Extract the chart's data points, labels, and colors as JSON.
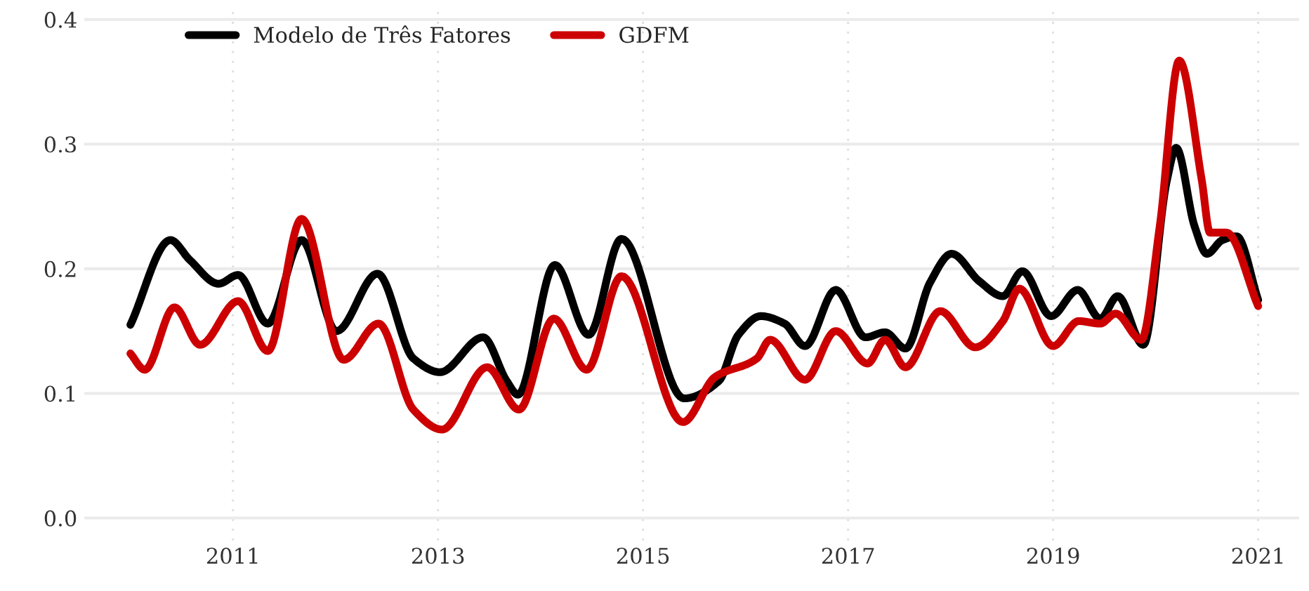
{
  "chart_data": {
    "type": "line",
    "xlim": [
      2009.55,
      2021.4
    ],
    "xticks": [
      2011,
      2013,
      2015,
      2017,
      2019,
      2021
    ],
    "ylim": [
      -0.018,
      0.41
    ],
    "yticks": [
      {
        "value": 0,
        "label": "0.0"
      },
      {
        "value": 0.1,
        "label": "0.1"
      },
      {
        "value": 0.2,
        "label": "0.2"
      },
      {
        "value": 0.3,
        "label": "0.3"
      },
      {
        "value": 0.4,
        "label": "0.4"
      }
    ],
    "grid": true,
    "legend": "top left",
    "marker": "none",
    "line_style": "solid",
    "series": [
      {
        "name": "Modelo de Três Fatores",
        "color": "#000000",
        "x": [
          2010.0,
          2010.39,
          2010.58,
          2010.86,
          2011.05,
          2011.34,
          2011.67,
          2012.01,
          2012.41,
          2012.76,
          2013.02,
          2013.44,
          2013.67,
          2013.78,
          2014.14,
          2014.47,
          2014.79,
          2015.4,
          2015.74,
          2015.93,
          2016.15,
          2016.38,
          2016.58,
          2016.88,
          2017.17,
          2017.36,
          2017.56,
          2017.8,
          2018.01,
          2018.28,
          2018.51,
          2018.7,
          2018.98,
          2019.24,
          2019.46,
          2019.63,
          2019.88,
          2020.11,
          2020.2,
          2020.38,
          2020.5,
          2020.65,
          2020.79,
          2021.0
        ],
        "values": [
          0.155,
          0.223,
          0.207,
          0.188,
          0.195,
          0.156,
          0.223,
          0.15,
          0.196,
          0.128,
          0.117,
          0.145,
          0.11,
          0.099,
          0.203,
          0.147,
          0.224,
          0.096,
          0.11,
          0.147,
          0.162,
          0.156,
          0.138,
          0.183,
          0.145,
          0.149,
          0.136,
          0.189,
          0.212,
          0.19,
          0.178,
          0.198,
          0.162,
          0.183,
          0.16,
          0.178,
          0.139,
          0.271,
          0.297,
          0.234,
          0.212,
          0.223,
          0.226,
          0.175
        ]
      },
      {
        "name": "GDFM",
        "color": "#cc0000",
        "x": [
          2010.0,
          2010.14,
          2010.43,
          2010.68,
          2011.05,
          2011.34,
          2011.67,
          2012.08,
          2012.42,
          2012.76,
          2013.04,
          2013.48,
          2013.79,
          2014.13,
          2014.45,
          2014.79,
          2015.39,
          2015.7,
          2016.11,
          2016.24,
          2016.58,
          2016.88,
          2017.19,
          2017.36,
          2017.56,
          2017.9,
          2018.24,
          2018.51,
          2018.67,
          2019.0,
          2019.25,
          2019.46,
          2019.61,
          2019.86,
          2020.04,
          2020.23,
          2020.45,
          2020.53,
          2020.69,
          2021.0
        ],
        "values": [
          0.132,
          0.119,
          0.169,
          0.139,
          0.174,
          0.134,
          0.24,
          0.127,
          0.156,
          0.087,
          0.071,
          0.121,
          0.087,
          0.16,
          0.119,
          0.194,
          0.077,
          0.113,
          0.128,
          0.143,
          0.111,
          0.15,
          0.124,
          0.143,
          0.121,
          0.166,
          0.137,
          0.158,
          0.184,
          0.138,
          0.158,
          0.156,
          0.164,
          0.143,
          0.234,
          0.367,
          0.271,
          0.229,
          0.229,
          0.17
        ]
      }
    ]
  }
}
